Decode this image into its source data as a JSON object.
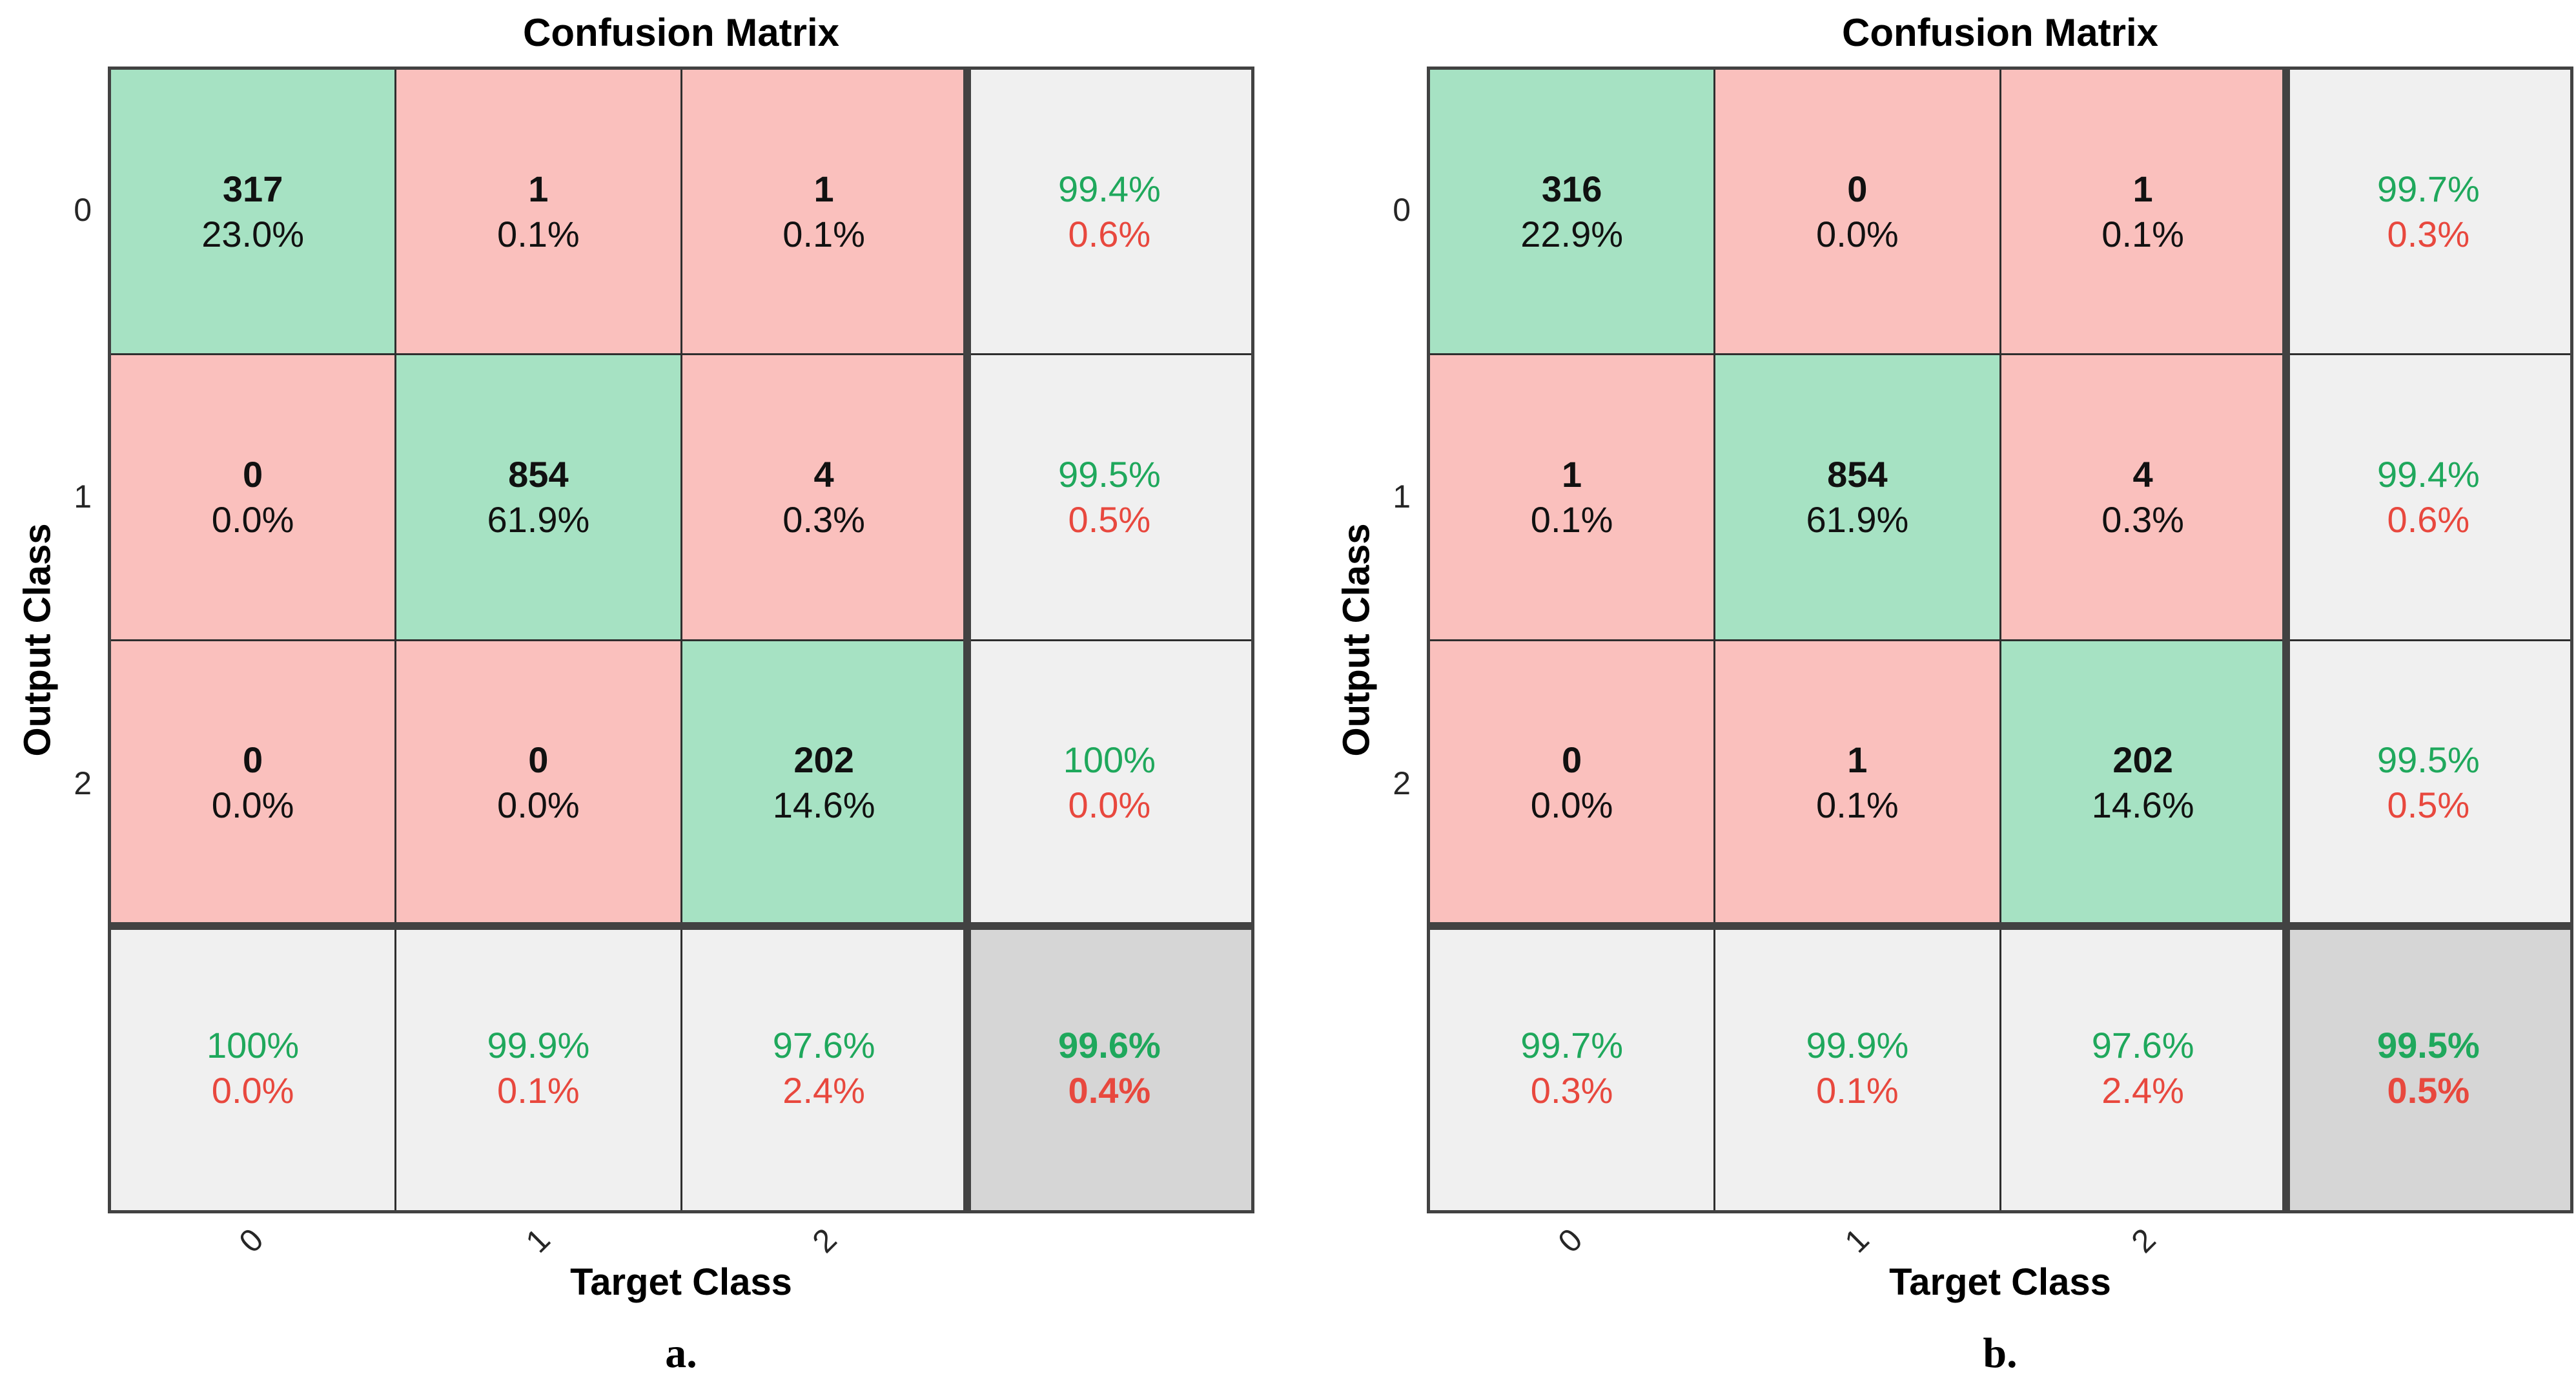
{
  "colors": {
    "diagonal_cell": "#a6e2c3",
    "off_diagonal_cell": "#fac0bd",
    "summary_cell": "#f0f0f0",
    "total_cell": "#d6d6d6",
    "grid_line": "#2e2e2e",
    "separator_line": "#424242",
    "positive_text": "#1fa85c",
    "negative_text": "#e8483e",
    "count_text": "#111111"
  },
  "chart_data": [
    {
      "type": "heatmap",
      "title": "Confusion Matrix",
      "xlabel": "Target Class",
      "ylabel": "Output Class",
      "panel_label": "a.",
      "classes": [
        "0",
        "1",
        "2"
      ],
      "counts": [
        [
          317,
          1,
          1
        ],
        [
          0,
          854,
          4
        ],
        [
          0,
          0,
          202
        ]
      ],
      "count_pct": [
        [
          "23.0%",
          "0.1%",
          "0.1%"
        ],
        [
          "0.0%",
          "61.9%",
          "0.3%"
        ],
        [
          "0.0%",
          "0.0%",
          "14.6%"
        ]
      ],
      "row_summary": [
        [
          "99.4%",
          "0.6%"
        ],
        [
          "99.5%",
          "0.5%"
        ],
        [
          "100%",
          "0.0%"
        ]
      ],
      "col_summary": [
        [
          "100%",
          "0.0%"
        ],
        [
          "99.9%",
          "0.1%"
        ],
        [
          "97.6%",
          "2.4%"
        ]
      ],
      "total_summary": [
        "99.6%",
        "0.4%"
      ],
      "legend_position": "none",
      "grid": true
    },
    {
      "type": "heatmap",
      "title": "Confusion Matrix",
      "xlabel": "Target Class",
      "ylabel": "Output Class",
      "panel_label": "b.",
      "classes": [
        "0",
        "1",
        "2"
      ],
      "counts": [
        [
          316,
          0,
          1
        ],
        [
          1,
          854,
          4
        ],
        [
          0,
          1,
          202
        ]
      ],
      "count_pct": [
        [
          "22.9%",
          "0.0%",
          "0.1%"
        ],
        [
          "0.1%",
          "61.9%",
          "0.3%"
        ],
        [
          "0.0%",
          "0.1%",
          "14.6%"
        ]
      ],
      "row_summary": [
        [
          "99.7%",
          "0.3%"
        ],
        [
          "99.4%",
          "0.6%"
        ],
        [
          "99.5%",
          "0.5%"
        ]
      ],
      "col_summary": [
        [
          "99.7%",
          "0.3%"
        ],
        [
          "99.9%",
          "0.1%"
        ],
        [
          "97.6%",
          "2.4%"
        ]
      ],
      "total_summary": [
        "99.5%",
        "0.5%"
      ],
      "legend_position": "none",
      "grid": true
    }
  ]
}
